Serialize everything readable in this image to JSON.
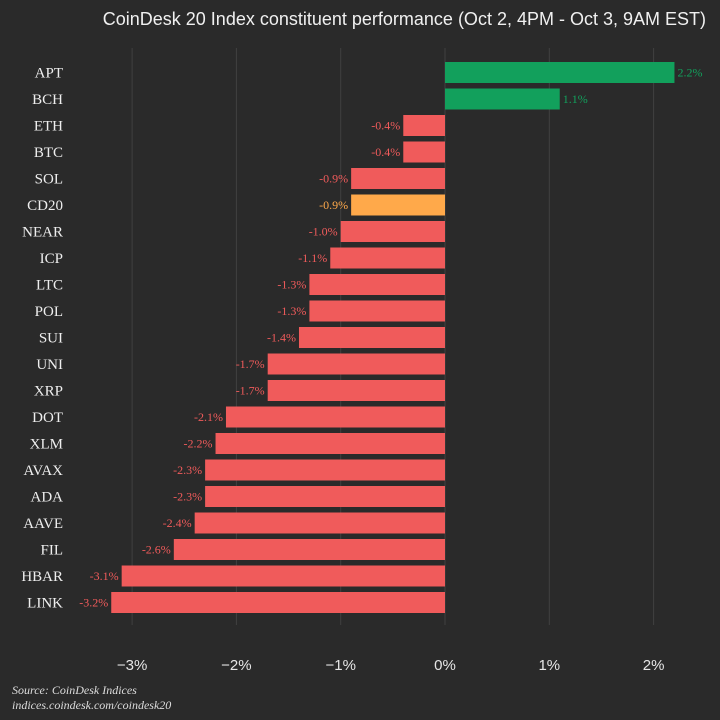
{
  "title": "CoinDesk 20 Index constituent performance (Oct 2, 4PM - Oct 3, 9AM EST)",
  "colors": {
    "background": "#2a2a2a",
    "positive": "#12a05c",
    "negative": "#f05b5b",
    "index": "#ffa94a",
    "grid": "#404040"
  },
  "footer": {
    "source": "Source: CoinDesk Indices",
    "url": "indices.coindesk.com/coindesk20"
  },
  "chart_data": {
    "type": "bar",
    "orientation": "horizontal",
    "title": "CoinDesk 20 Index constituent performance (Oct 2, 4PM - Oct 3, 9AM EST)",
    "xlabel": "",
    "ylabel": "",
    "xlim": [
      -3.2,
      2.2
    ],
    "xticks": [
      -3,
      -2,
      -1,
      0,
      1,
      2
    ],
    "xtick_labels": [
      "−3%",
      "−2%",
      "−1%",
      "0%",
      "1%",
      "2%"
    ],
    "grid": "vertical",
    "highlight": "CD20",
    "categories": [
      "APT",
      "BCH",
      "ETH",
      "BTC",
      "SOL",
      "CD20",
      "NEAR",
      "ICP",
      "LTC",
      "POL",
      "SUI",
      "UNI",
      "XRP",
      "DOT",
      "XLM",
      "AVAX",
      "ADA",
      "AAVE",
      "FIL",
      "HBAR",
      "LINK"
    ],
    "values": [
      2.2,
      1.1,
      -0.4,
      -0.4,
      -0.9,
      -0.9,
      -1.0,
      -1.1,
      -1.3,
      -1.3,
      -1.4,
      -1.7,
      -1.7,
      -2.1,
      -2.2,
      -2.3,
      -2.3,
      -2.4,
      -2.6,
      -3.1,
      -3.2
    ],
    "labels": [
      "2.2%",
      "1.1%",
      "-0.4%",
      "-0.4%",
      "-0.9%",
      "-0.9%",
      "-1.0%",
      "-1.1%",
      "-1.3%",
      "-1.3%",
      "-1.4%",
      "-1.7%",
      "-1.7%",
      "-2.1%",
      "-2.2%",
      "-2.3%",
      "-2.3%",
      "-2.4%",
      "-2.6%",
      "-3.1%",
      "-3.2%"
    ]
  }
}
